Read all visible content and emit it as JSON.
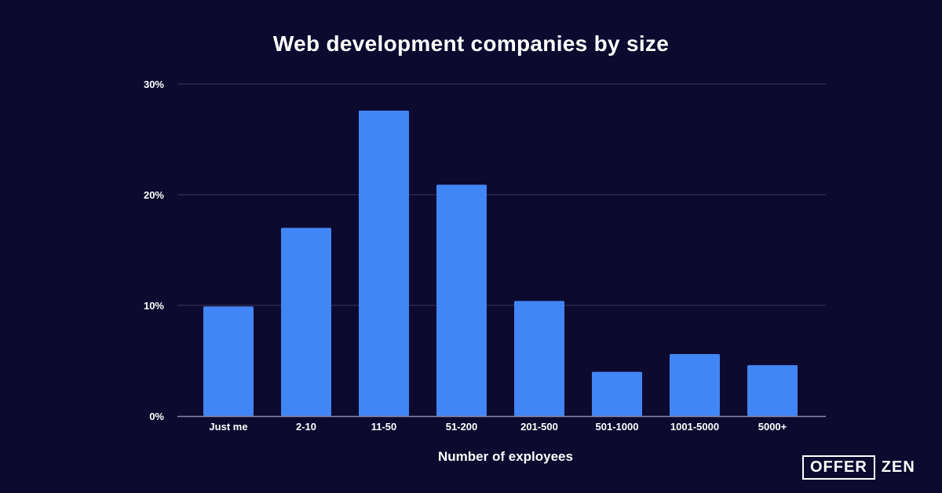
{
  "chart_data": {
    "type": "bar",
    "title": "Web development companies by size",
    "xlabel": "Number of exployees",
    "ylabel": "",
    "categories": [
      "Just me",
      "2-10",
      "11-50",
      "51-200",
      "201-500",
      "501-1000",
      "1001-5000",
      "5000+"
    ],
    "values": [
      9.9,
      17.0,
      27.6,
      20.9,
      10.4,
      4.0,
      5.6,
      4.6
    ],
    "ylim": [
      0,
      30
    ],
    "yticks": [
      0,
      10,
      20,
      30
    ],
    "ytick_labels": [
      "0%",
      "10%",
      "20%",
      "30%"
    ],
    "grid": true,
    "colors": {
      "background": "#0c0a2e",
      "bar": "#4285f4",
      "grid": "#3a3860",
      "axis": "#8a88a8",
      "text": "#ffffff"
    }
  },
  "logo": {
    "boxed_text": "OFFER",
    "plain_text": "ZEN"
  }
}
